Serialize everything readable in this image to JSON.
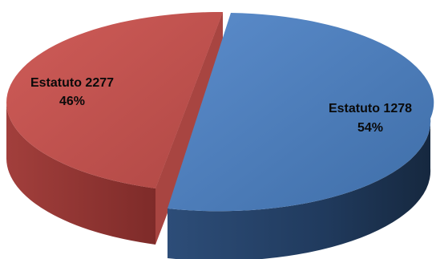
{
  "chart_data": {
    "type": "pie",
    "title": "",
    "three_d": true,
    "exploded": true,
    "legend": "none",
    "slices": [
      {
        "label": "Estatuto 1278",
        "percent_text": "54%",
        "value": 54,
        "color": "#4f81bd",
        "side_color": "#1f3556"
      },
      {
        "label": "Estatuto 2277",
        "percent_text": "46%",
        "value": 46,
        "color": "#c0504d",
        "side_color": "#8b2f2d"
      }
    ]
  }
}
